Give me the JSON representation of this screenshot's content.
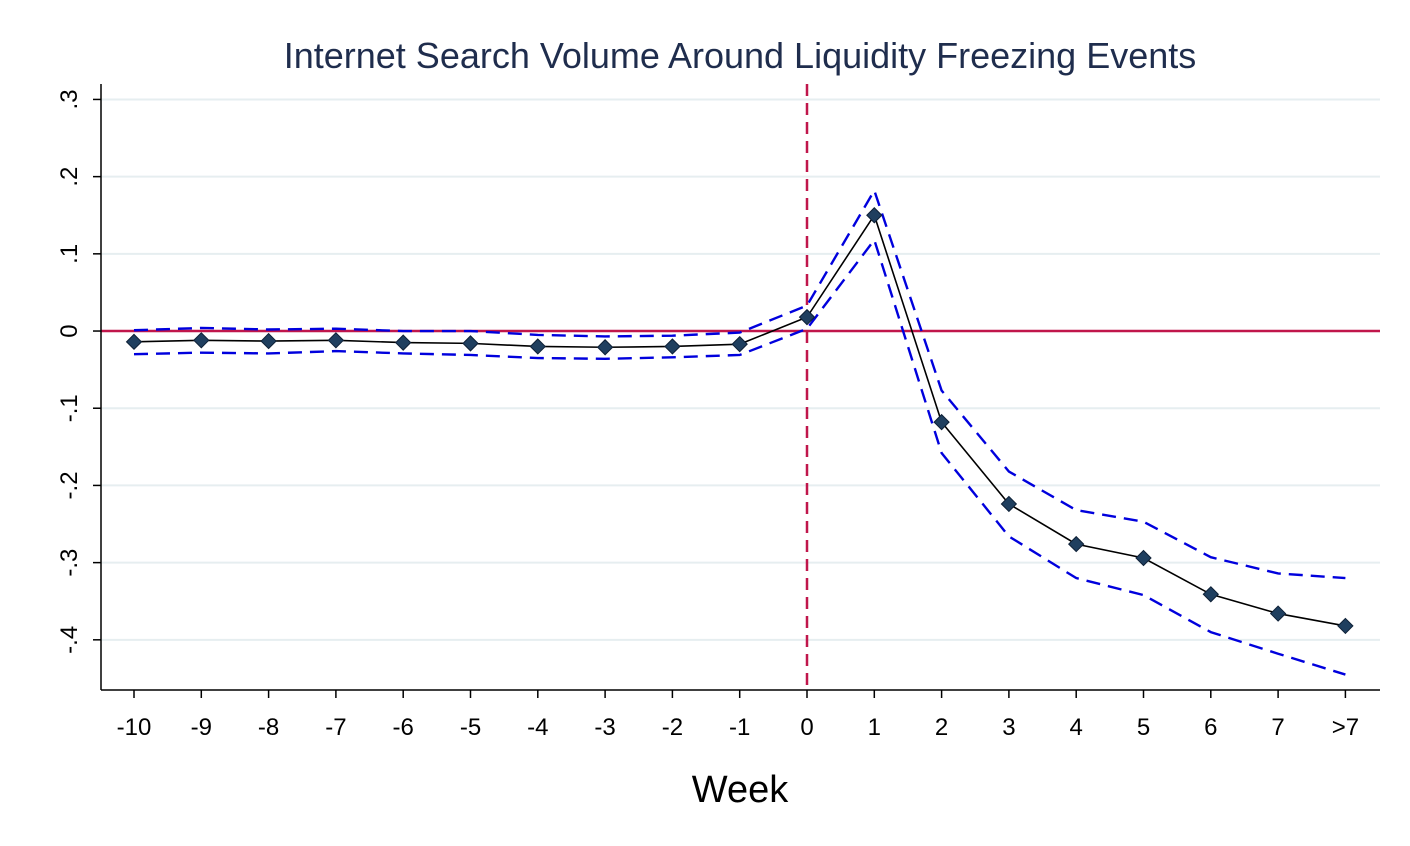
{
  "chart_data": {
    "type": "line",
    "title": "Internet Search Volume Around Liquidity Freezing Events",
    "xlabel": "Week",
    "ylabel": "",
    "categories": [
      "-10",
      "-9",
      "-8",
      "-7",
      "-6",
      "-5",
      "-4",
      "-3",
      "-2",
      "-1",
      "0",
      "1",
      "2",
      "3",
      "4",
      "5",
      "6",
      "7",
      ">7"
    ],
    "yticks": [
      ".3",
      ".2",
      ".1",
      "0",
      "-.1",
      "-.2",
      "-.3",
      "-.4"
    ],
    "ytick_values": [
      0.3,
      0.2,
      0.1,
      0,
      -0.1,
      -0.2,
      -0.3,
      -0.4
    ],
    "ylim": [
      -0.465,
      0.32
    ],
    "grid": true,
    "reference_lines": {
      "y": 0,
      "x_category": "0"
    },
    "series": [
      {
        "role": "estimate",
        "values": [
          -0.014,
          -0.012,
          -0.013,
          -0.012,
          -0.015,
          -0.016,
          -0.02,
          -0.021,
          -0.02,
          -0.017,
          0.018,
          0.15,
          -0.118,
          -0.224,
          -0.276,
          -0.294,
          -0.341,
          -0.366,
          -0.382
        ]
      },
      {
        "role": "upper-ci",
        "values": [
          0.001,
          0.004,
          0.002,
          0.003,
          0.0,
          0.0,
          -0.005,
          -0.007,
          -0.006,
          -0.002,
          0.033,
          0.182,
          -0.077,
          -0.182,
          -0.232,
          -0.247,
          -0.293,
          -0.314,
          -0.32
        ]
      },
      {
        "role": "lower-ci",
        "values": [
          -0.03,
          -0.028,
          -0.029,
          -0.026,
          -0.029,
          -0.031,
          -0.035,
          -0.036,
          -0.034,
          -0.031,
          0.003,
          0.118,
          -0.158,
          -0.266,
          -0.32,
          -0.342,
          -0.39,
          -0.418,
          -0.445
        ]
      }
    ],
    "colors": {
      "estimate_line": "#000000",
      "markers": "#1f3f5f",
      "ci_lines": "#0000dd",
      "reference": "#c0164b",
      "grid": "#e6eef0",
      "title": "#1f2d4d"
    }
  }
}
